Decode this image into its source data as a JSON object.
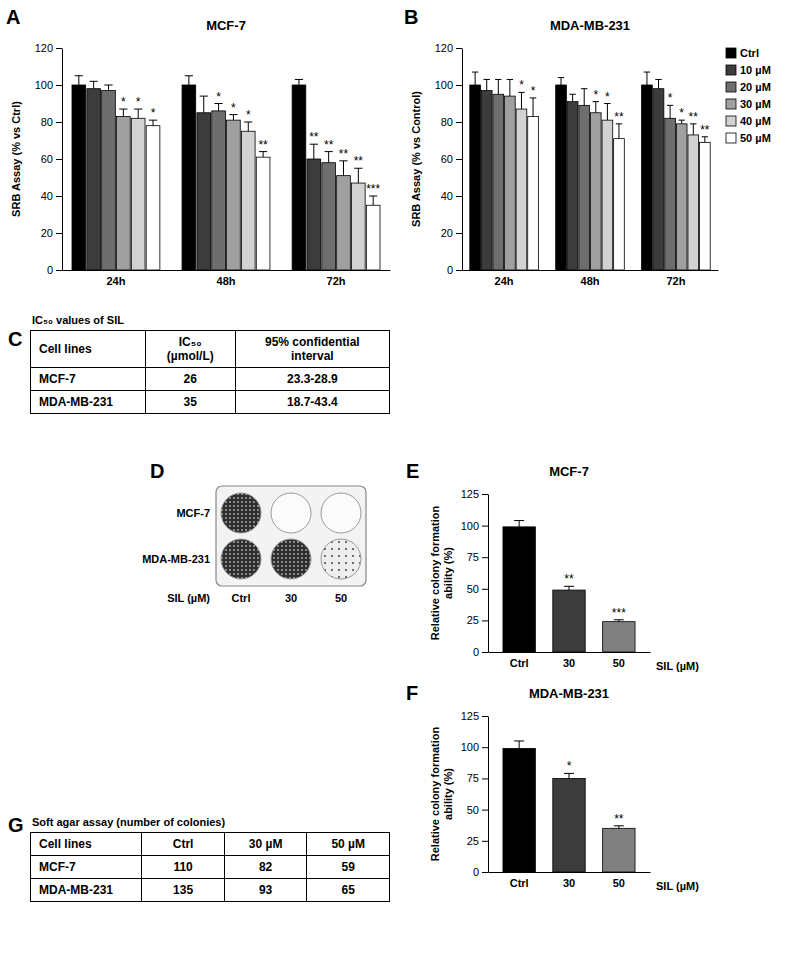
{
  "panel_labels": [
    "A",
    "B",
    "C",
    "D",
    "E",
    "F",
    "G"
  ],
  "chart_data": [
    {
      "type": "bar",
      "title": "MCF-7",
      "y_label": "SRB Assay (% vs Ctrl)",
      "categories": [
        "24h",
        "48h",
        "72h"
      ],
      "series": [
        {
          "color": "#000000",
          "values": [
            100,
            100,
            100
          ],
          "errors": [
            5,
            5,
            3
          ],
          "stars": [
            null,
            null,
            null
          ]
        },
        {
          "color": "#3c3c3c",
          "values": [
            98,
            85,
            60
          ],
          "errors": [
            4,
            9,
            8
          ],
          "stars": [
            null,
            null,
            "**"
          ]
        },
        {
          "color": "#6e6e6e",
          "values": [
            97,
            86,
            58
          ],
          "errors": [
            3,
            4,
            6
          ],
          "stars": [
            null,
            "*",
            "**"
          ]
        },
        {
          "color": "#a0a0a0",
          "values": [
            83,
            81,
            51
          ],
          "errors": [
            4,
            3,
            8
          ],
          "stars": [
            "*",
            "*",
            "**"
          ]
        },
        {
          "color": "#d2d2d2",
          "values": [
            82,
            75,
            47
          ],
          "errors": [
            5,
            5,
            8
          ],
          "stars": [
            "*",
            "*",
            "**"
          ]
        },
        {
          "color": "#ffffff",
          "values": [
            78,
            61,
            35
          ],
          "errors": [
            3,
            3,
            5
          ],
          "stars": [
            "*",
            "**",
            "***"
          ]
        }
      ],
      "ylim": [
        0,
        120
      ],
      "yticks": [
        0,
        20,
        40,
        60,
        80,
        100,
        120
      ]
    },
    {
      "type": "bar",
      "title": "MDA-MB-231",
      "y_label": "SRB Assay (% vs Control)",
      "categories": [
        "24h",
        "48h",
        "72h"
      ],
      "series": [
        {
          "name": "Ctrl",
          "color": "#000000",
          "values": [
            100,
            100,
            100
          ],
          "errors": [
            7,
            4,
            7
          ],
          "stars": [
            null,
            null,
            null
          ]
        },
        {
          "name": "10 µM",
          "color": "#3c3c3c",
          "values": [
            97,
            91,
            98
          ],
          "errors": [
            6,
            4,
            5
          ],
          "stars": [
            null,
            null,
            null
          ]
        },
        {
          "name": "20 µM",
          "color": "#6e6e6e",
          "values": [
            95,
            89,
            82
          ],
          "errors": [
            8,
            9,
            7
          ],
          "stars": [
            null,
            null,
            "*"
          ]
        },
        {
          "name": "30 µM",
          "color": "#a0a0a0",
          "values": [
            94,
            85,
            79
          ],
          "errors": [
            9,
            6,
            2
          ],
          "stars": [
            null,
            "*",
            "*"
          ]
        },
        {
          "name": "40 µM",
          "color": "#d2d2d2",
          "values": [
            87,
            81,
            73
          ],
          "errors": [
            9,
            9,
            6
          ],
          "stars": [
            "*",
            "*",
            "**"
          ]
        },
        {
          "name": "50 µM",
          "color": "#ffffff",
          "values": [
            83,
            71,
            69
          ],
          "errors": [
            10,
            8,
            3
          ],
          "stars": [
            "*",
            "**",
            "**"
          ]
        }
      ],
      "ylim": [
        0,
        120
      ],
      "yticks": [
        0,
        20,
        40,
        60,
        80,
        100,
        120
      ],
      "legend": "right"
    },
    {
      "type": "bar",
      "title": "MCF-7",
      "y_label": "Relative colony formation ability (%)",
      "x_label": "SIL (µM)",
      "categories": [
        "Ctrl",
        "30",
        "50"
      ],
      "values": [
        99,
        49,
        24
      ],
      "errors": [
        5,
        3,
        1.5
      ],
      "stars": [
        null,
        "**",
        "***"
      ],
      "colors": [
        "#000000",
        "#3c3c3c",
        "#808080"
      ],
      "ylim": [
        0,
        125
      ],
      "yticks": [
        0,
        25,
        50,
        75,
        100,
        125
      ]
    },
    {
      "type": "bar",
      "title": "MDA-MB-231",
      "y_label": "Relative colony formation ability (%)",
      "x_label": "SIL (µM)",
      "categories": [
        "Ctrl",
        "30",
        "50"
      ],
      "values": [
        99,
        75,
        35
      ],
      "errors": [
        6,
        4,
        2
      ],
      "stars": [
        null,
        "*",
        "**"
      ],
      "colors": [
        "#000000",
        "#3c3c3c",
        "#808080"
      ],
      "ylim": [
        0,
        125
      ],
      "yticks": [
        0,
        25,
        50,
        75,
        100,
        125
      ]
    }
  ],
  "table_c": {
    "caption": "IC₅₀ values of SIL",
    "header": [
      "Cell lines",
      "IC₅₀ (µmol/L)",
      "95% confidential interval"
    ],
    "rows": [
      [
        "MCF-7",
        26,
        "23.3-28.9"
      ],
      [
        "MDA-MB-231",
        35,
        "18.7-43.4"
      ]
    ]
  },
  "plate_d": {
    "rows": [
      "MCF-7",
      "MDA-MB-231"
    ],
    "column_title": "SIL (µM)",
    "columns": [
      "Ctrl",
      "30",
      "50"
    ]
  },
  "table_g": {
    "caption": "Soft agar assay (number of colonies)",
    "header": [
      "Cell lines",
      "Ctrl",
      "30 µM",
      "50 µM"
    ],
    "rows": [
      [
        "MCF-7",
        110,
        82,
        59
      ],
      [
        "MDA-MB-231",
        135,
        93,
        65
      ]
    ]
  }
}
